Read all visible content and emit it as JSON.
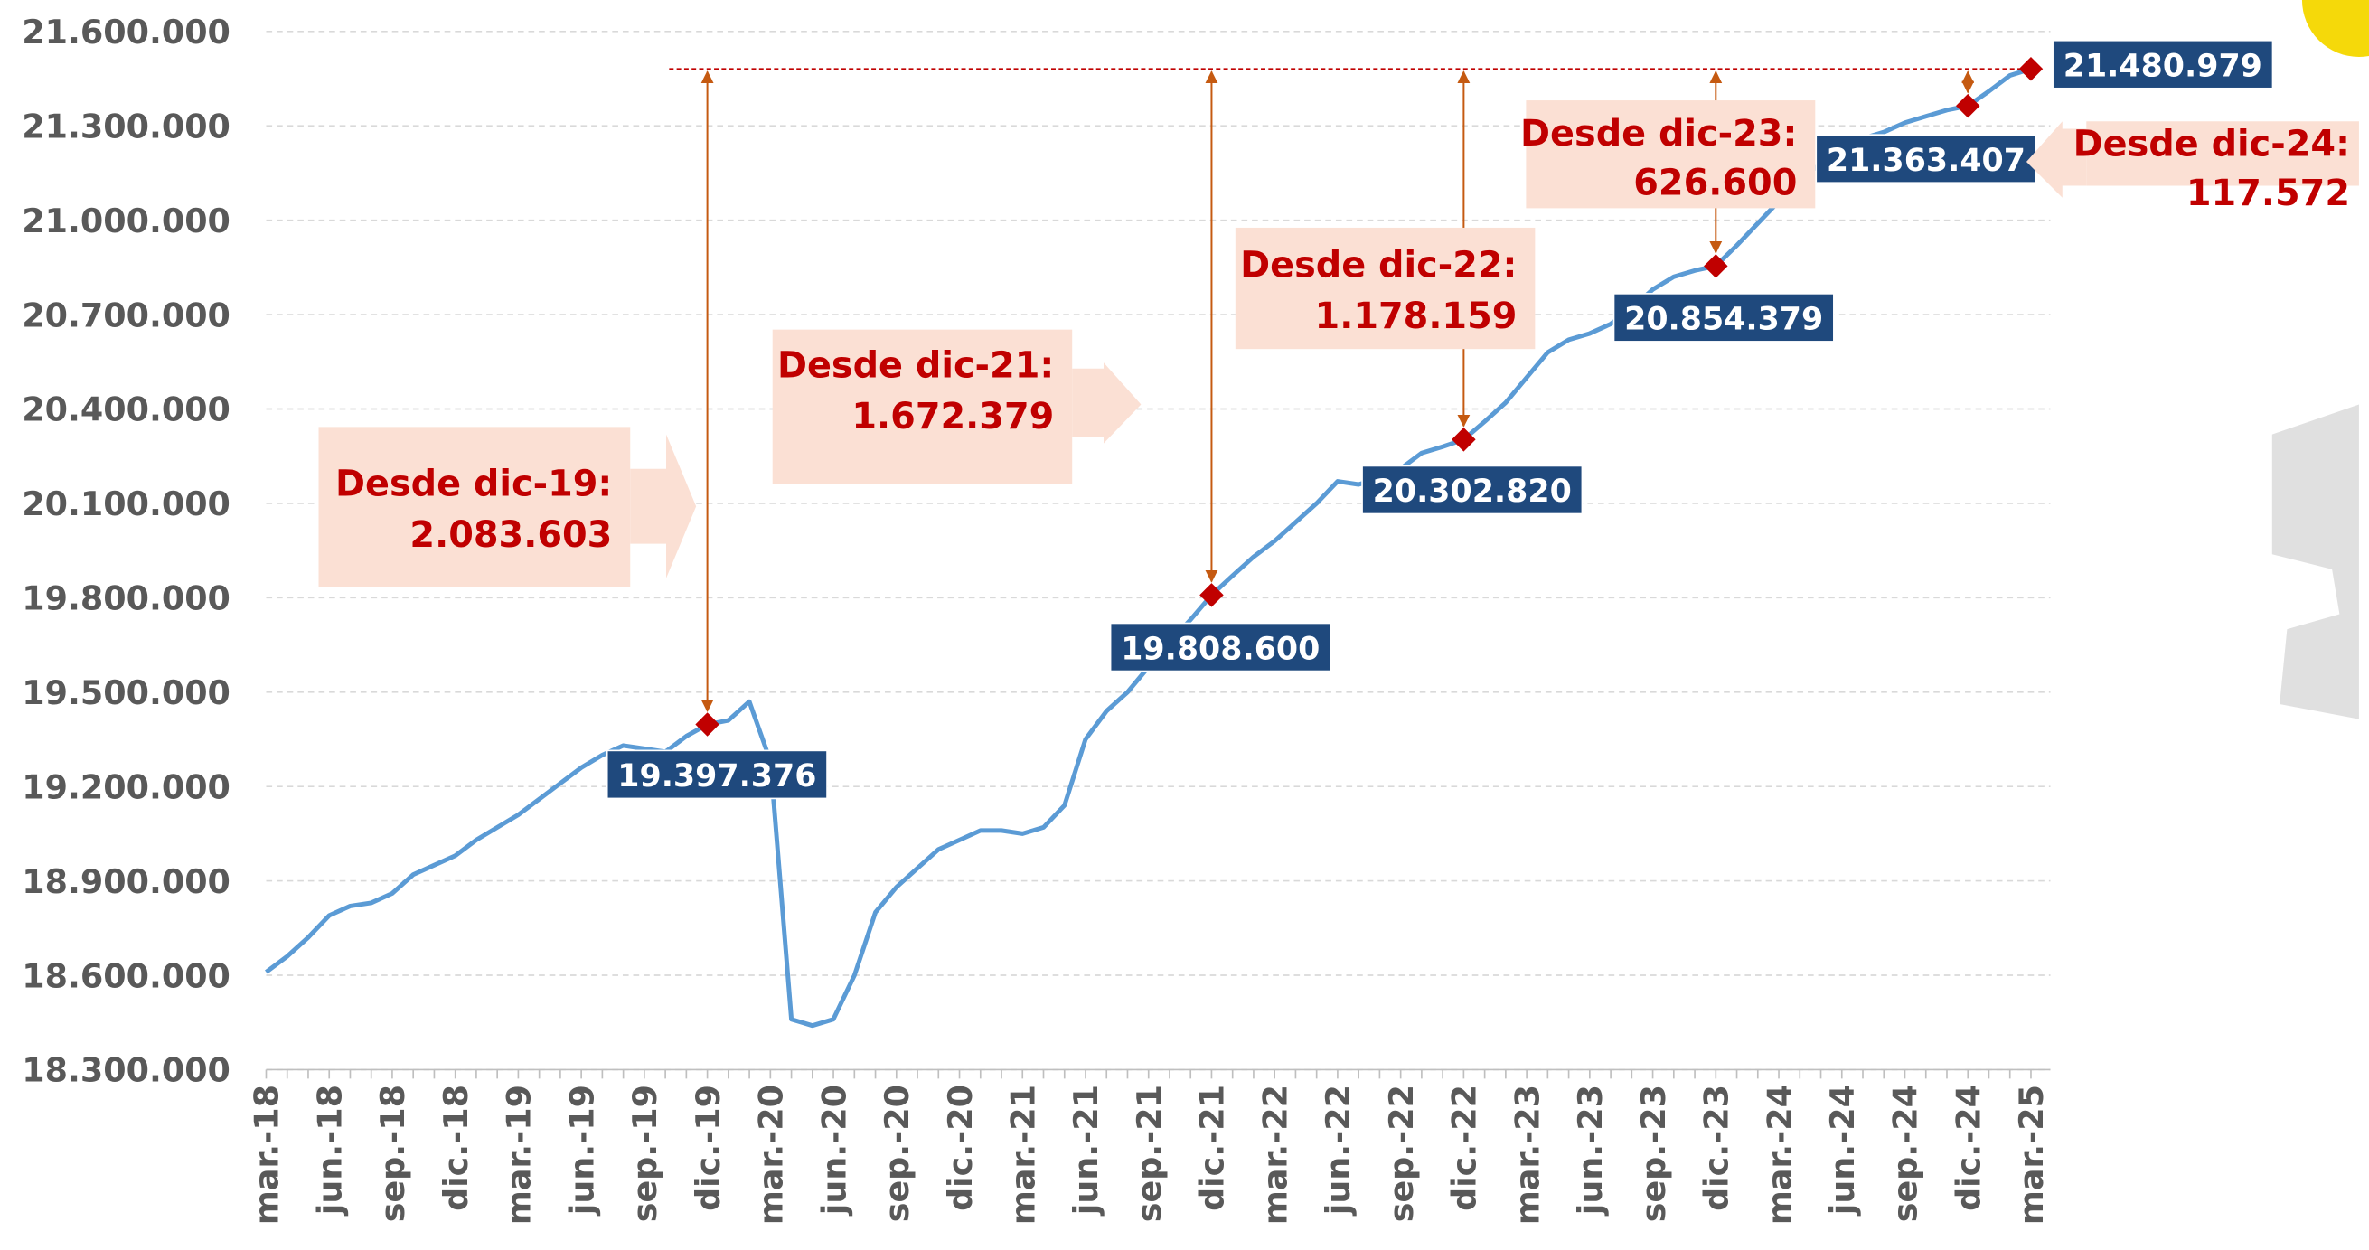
{
  "chart_data": {
    "type": "line",
    "categories": [
      "mar.-18",
      null,
      null,
      "jun.-18",
      null,
      null,
      "sep.-18",
      null,
      null,
      "dic.-18",
      null,
      null,
      "mar.-19",
      null,
      null,
      "jun.-19",
      null,
      null,
      "sep.-19",
      null,
      null,
      "dic.-19",
      null,
      null,
      "mar.-20",
      null,
      null,
      "jun.-20",
      null,
      null,
      "sep.-20",
      null,
      null,
      "dic.-20",
      null,
      null,
      "mar.-21",
      null,
      null,
      "jun.-21",
      null,
      null,
      "sep.-21",
      null,
      null,
      "dic.-21",
      null,
      null,
      "mar.-22",
      null,
      null,
      "jun.-22",
      null,
      null,
      "sep.-22",
      null,
      null,
      "dic.-22",
      null,
      null,
      "mar.-23",
      null,
      null,
      "jun.-23",
      null,
      null,
      "sep.-23",
      null,
      null,
      "dic.-23",
      null,
      null,
      "mar.-24",
      null,
      null,
      "jun.-24",
      null,
      null,
      "sep.-24",
      null,
      null,
      "dic.-24",
      null,
      null,
      "mar.-25"
    ],
    "values": [
      18610000,
      18660000,
      18720000,
      18790000,
      18820000,
      18830000,
      18860000,
      18920000,
      18950000,
      18980000,
      19030000,
      19070000,
      19110000,
      19160000,
      19210000,
      19260000,
      19300000,
      19330000,
      19320000,
      19310000,
      19360000,
      19397376,
      19410000,
      19470000,
      19280000,
      18460000,
      18440000,
      18460000,
      18600000,
      18800000,
      18880000,
      18940000,
      19000000,
      19030000,
      19060000,
      19060000,
      19050000,
      19070000,
      19140000,
      19350000,
      19440000,
      19500000,
      19580000,
      19660000,
      19730000,
      19808600,
      19870000,
      19930000,
      19980000,
      20040000,
      20100000,
      20170000,
      20160000,
      20180000,
      20210000,
      20260000,
      20280000,
      20302820,
      20360000,
      20420000,
      20500000,
      20580000,
      20620000,
      20640000,
      20670000,
      20720000,
      20780000,
      20820000,
      20840000,
      20854379,
      20920000,
      20990000,
      21060000,
      21130000,
      21180000,
      21230000,
      21260000,
      21280000,
      21310000,
      21330000,
      21350000,
      21363407,
      21410000,
      21460000,
      21480979
    ],
    "value_labels": [
      null,
      null,
      null,
      null,
      null,
      null,
      null,
      null,
      null,
      null,
      null,
      null,
      null,
      null,
      null,
      null,
      null,
      null,
      null,
      null,
      null,
      "19.397.376",
      null,
      null,
      null,
      null,
      null,
      null,
      null,
      null,
      null,
      null,
      null,
      null,
      null,
      null,
      null,
      null,
      null,
      null,
      null,
      null,
      null,
      null,
      null,
      "19.808.600",
      null,
      null,
      null,
      null,
      null,
      null,
      null,
      null,
      null,
      null,
      null,
      "20.302.820",
      null,
      null,
      null,
      null,
      null,
      null,
      null,
      null,
      null,
      null,
      null,
      "20.854.379",
      null,
      null,
      null,
      null,
      null,
      null,
      null,
      null,
      null,
      null,
      null,
      "21.363.407",
      null,
      null,
      "21.480.979"
    ],
    "color": "#5b9bd5",
    "marker_color": "#c00000",
    "label_color": "#1f497d",
    "ylim": [
      18300000,
      21600000
    ],
    "yticks": [
      {
        "value": 18300000,
        "label": "18.300.000"
      },
      {
        "value": 18600000,
        "label": "18.600.000"
      },
      {
        "value": 18900000,
        "label": "18.900.000"
      },
      {
        "value": 19200000,
        "label": "19.200.000"
      },
      {
        "value": 19500000,
        "label": "19.500.000"
      },
      {
        "value": 19800000,
        "label": "19.800.000"
      },
      {
        "value": 20100000,
        "label": "20.100.000"
      },
      {
        "value": 20400000,
        "label": "20.400.000"
      },
      {
        "value": 20700000,
        "label": "20.700.000"
      },
      {
        "value": 21000000,
        "label": "21.000.000"
      },
      {
        "value": 21300000,
        "label": "21.300.000"
      },
      {
        "value": 21600000,
        "label": "21.600.000"
      }
    ],
    "grid": true,
    "annotations": [
      {
        "title": "Desde dic-19:",
        "text": "2.083.603"
      },
      {
        "title": "Desde dic-21:",
        "text": "1.672.379"
      },
      {
        "title": "Desde dic-22:",
        "text": "1.178.159"
      },
      {
        "title": "Desde dic-23:",
        "text": "626.600"
      },
      {
        "title": "Desde dic-24:",
        "text": "117.572"
      }
    ]
  }
}
